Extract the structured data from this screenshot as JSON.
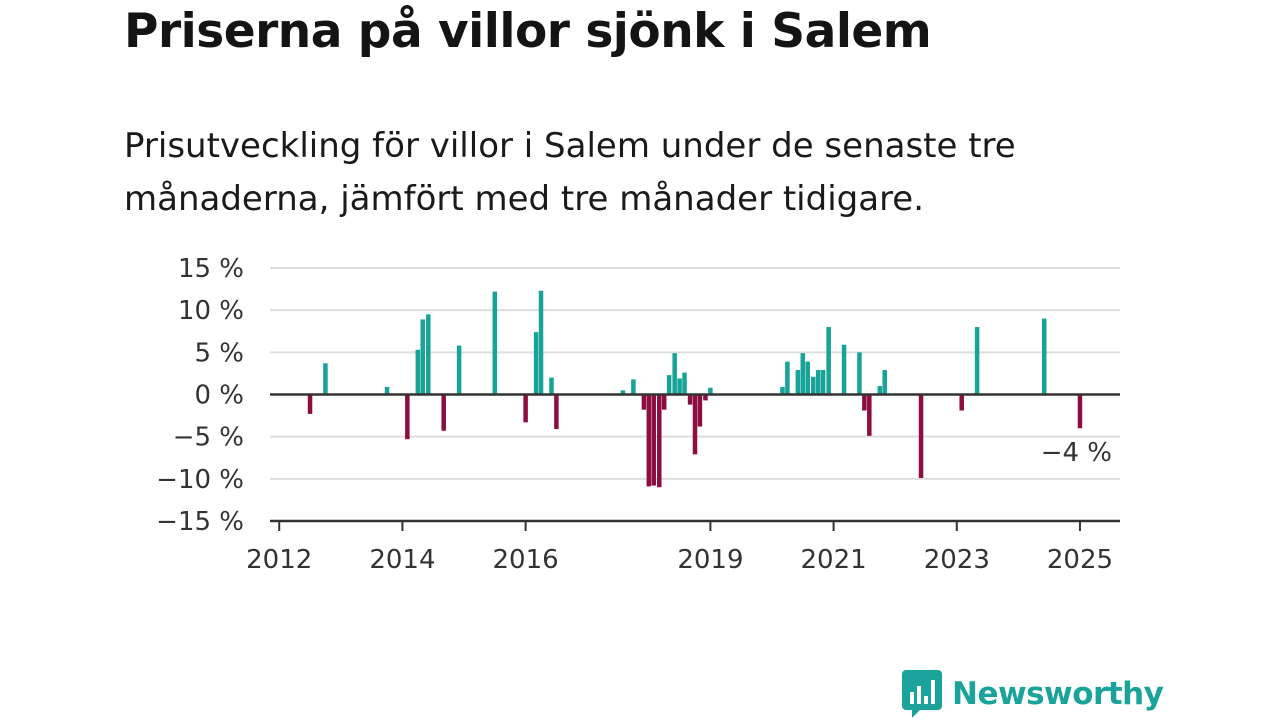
{
  "title": "Priserna på villor sjönk i Salem",
  "subtitle": "Prisutveckling för villor i Salem under de senaste tre månaderna, jämfört med tre månader tidigare.",
  "brand": {
    "name": "Newsworthy",
    "logo_icon": "bar-chart-speech-bubble-icon"
  },
  "colors": {
    "positive": "#17a398",
    "negative": "#8c0d3f",
    "grid": "#dddddd",
    "axis": "#333333",
    "brand": "#1aa39a"
  },
  "chart_data": {
    "type": "bar",
    "title": "Priserna på villor sjönk i Salem",
    "xlabel": "",
    "ylabel": "",
    "ylim": [
      -15,
      15
    ],
    "yticks": [
      15,
      10,
      5,
      0,
      -5,
      -10,
      -15
    ],
    "ytick_labels": [
      "15 %",
      "10 %",
      "5 %",
      "0 %",
      "−5 %",
      "−10 %",
      "−15 %"
    ],
    "xlim": [
      2011.85,
      2025.65
    ],
    "xticks": [
      2012,
      2014,
      2016,
      2019,
      2021,
      2023,
      2025
    ],
    "xtick_labels": [
      "2012",
      "2014",
      "2016",
      "2019",
      "2021",
      "2023",
      "2025"
    ],
    "grid": true,
    "last_value_label": "−4 %",
    "series": [
      {
        "x": [
          2012.5,
          2012.75,
          2013.75,
          2014.08,
          2014.25,
          2014.33,
          2014.42,
          2014.67,
          2014.92,
          2015.5,
          2016.0,
          2016.17,
          2016.25,
          2016.42,
          2016.5,
          2017.58,
          2017.75,
          2017.92,
          2018.0,
          2018.08,
          2018.17,
          2018.25,
          2018.33,
          2018.42,
          2018.5,
          2018.58,
          2018.67,
          2018.75,
          2018.83,
          2018.92,
          2019.0,
          2020.17,
          2020.25,
          2020.42,
          2020.5,
          2020.58,
          2020.67,
          2020.75,
          2020.83,
          2020.92,
          2021.17,
          2021.42,
          2021.5,
          2021.58,
          2021.75,
          2021.83,
          2022.42,
          2023.08,
          2023.33,
          2024.42,
          2025.0
        ],
        "values": [
          -2.3,
          3.7,
          0.9,
          -5.3,
          5.3,
          8.9,
          9.5,
          -4.3,
          5.8,
          12.2,
          -3.3,
          7.4,
          12.3,
          2.0,
          -4.1,
          0.5,
          1.8,
          -1.8,
          -10.9,
          -10.8,
          -11.0,
          -1.8,
          2.3,
          4.9,
          1.9,
          2.6,
          -1.2,
          -7.1,
          -3.8,
          -0.7,
          0.8,
          0.9,
          3.9,
          2.9,
          4.9,
          3.9,
          2.1,
          2.9,
          2.9,
          8.0,
          5.9,
          5.0,
          -1.9,
          -4.9,
          1.0,
          2.9,
          -9.9,
          -1.9,
          8.0,
          9.0,
          -4.0
        ]
      }
    ]
  }
}
